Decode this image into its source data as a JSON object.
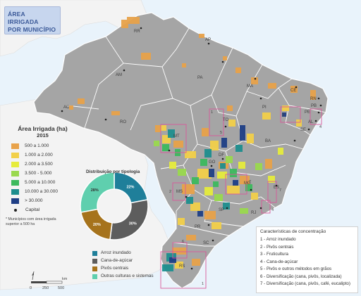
{
  "title": {
    "line1": "ÁREA IRRIGADA",
    "line2": "POR MUNICÍPIO"
  },
  "legend": {
    "title": "Área Irrigada (ha)",
    "year": "2015",
    "classes": [
      {
        "label": "500 a 1.000",
        "color": "#e8a24a"
      },
      {
        "label": "1.000 a 2.000",
        "color": "#f2d04a"
      },
      {
        "label": "2.000 a 3.500",
        "color": "#e6ec3c"
      },
      {
        "label": "3.500 - 5.000",
        "color": "#9ad94e"
      },
      {
        "label": "5.000 a 10.000",
        "color": "#3cba5e"
      },
      {
        "label": "10.000 a 30.000",
        "color": "#1e8e8e"
      },
      {
        "label": "> 30.000",
        "color": "#1f3f86"
      }
    ],
    "capital_label": "Capital",
    "note": "* Municípios com área irrigada superior a 500 ha"
  },
  "states": [
    "RR",
    "AP",
    "AM",
    "PA",
    "MA",
    "CE",
    "RN",
    "PB",
    "PE",
    "AL",
    "SE",
    "PI",
    "TO",
    "BA",
    "AC",
    "RO",
    "MT",
    "DF",
    "GO",
    "MG",
    "ES",
    "MS",
    "SP",
    "RJ",
    "PR",
    "SC",
    "RS"
  ],
  "distribution": {
    "title": "Distribuição por tipologia",
    "segments": [
      {
        "label": "Arroz inundado",
        "percent": 22,
        "value_text": "22%",
        "color": "#1f7f9a"
      },
      {
        "label": "Cana-de-açúcar",
        "percent": 30,
        "value_text": "30%",
        "color": "#5d5d5d"
      },
      {
        "label": "Pivôs centrais",
        "percent": 20,
        "value_text": "20%",
        "color": "#a6731c"
      },
      {
        "label": "Outras culturas e sistemas",
        "percent": 28,
        "value_text": "28%",
        "color": "#5fcfae"
      }
    ]
  },
  "characteristics": {
    "title": "Características de concentração",
    "items": [
      "1 - Arroz inundado",
      "2 - Pivôs centrais",
      "3 - Fruticultura",
      "4 - Cana-de-açúcar",
      "5 - Pivôs e outros métodos em grãos",
      "6 - Diversificação (cana, pivôs, localizada)",
      "7 - Diversificação (cana, pivôs, café, eucalipto)"
    ],
    "region_numbers": [
      "1",
      "1",
      "2",
      "3",
      "4",
      "4",
      "5",
      "6",
      "7",
      "7"
    ]
  },
  "scale": {
    "ticks": [
      "0",
      "250",
      "500"
    ],
    "unit": "km"
  }
}
